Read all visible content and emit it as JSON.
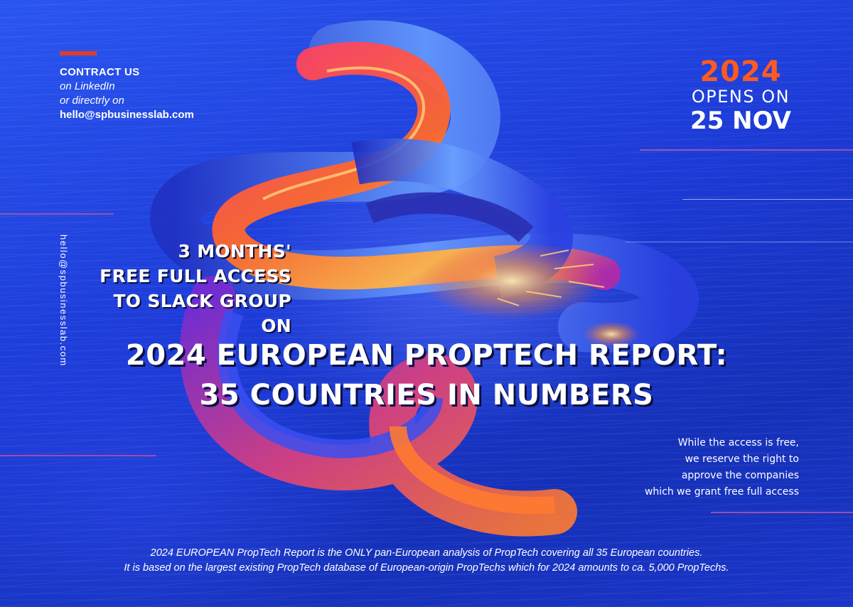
{
  "contact": {
    "title": "CONTRACT US",
    "line1": "on LinkedIn",
    "line2": "or directrly on",
    "email": "hello@spbusinesslab.com"
  },
  "launch": {
    "year": "2024",
    "opens": "OPENS ON",
    "date": "25 NOV"
  },
  "side_email": "hello@spbusinesslab.com",
  "offer": {
    "line1": "3 MONTHS'",
    "line2": "FREE FULL ACCESS",
    "line3": "TO SLACK GROUP ON"
  },
  "headline": {
    "line1": "2024 EUROPEAN PROPTECH REPORT:",
    "line2": "35 COUNTRIES IN NUMBERS"
  },
  "note": {
    "line1": "While the access is free,",
    "line2": "we reserve the right to",
    "line3": "approve the companies",
    "line4": "which we grant free full access"
  },
  "footer": {
    "line1": "2024 EUROPEAN PropTech Report is the ONLY pan-European analysis of PropTech covering all 35 European countries.",
    "line2": "It is based on the largest existing PropTech database of European-origin PropTechs which for 2024 amounts to ca. 5,000 PropTechs."
  },
  "colors": {
    "background": "#1f3fd6",
    "accent_red": "#e23b2a",
    "accent_orange": "#ff5a1f",
    "text": "#ffffff"
  }
}
